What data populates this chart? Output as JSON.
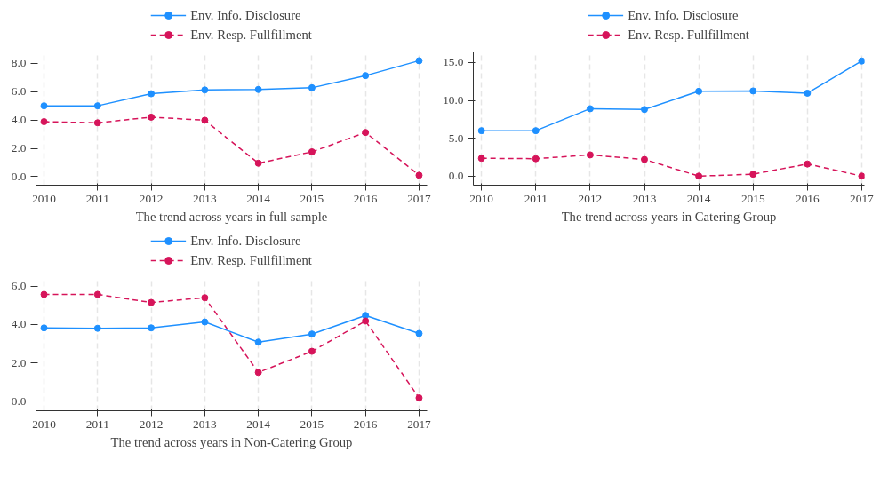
{
  "chart_data": [
    {
      "type": "line",
      "xlabel": "The trend across years in full sample",
      "x": [
        2010,
        2011,
        2012,
        2013,
        2014,
        2015,
        2016,
        2017
      ],
      "xlim": [
        2009.85,
        2017.15
      ],
      "xticks": [
        2010,
        2011,
        2012,
        2013,
        2014,
        2015,
        2016,
        2017
      ],
      "ylim": [
        -0.6,
        8.8
      ],
      "yticks": [
        {
          "value": 0,
          "label": "0.0"
        },
        {
          "value": 2,
          "label": "2.0"
        },
        {
          "value": 4,
          "label": "4.0"
        },
        {
          "value": 6,
          "label": "6.0"
        },
        {
          "value": 8,
          "label": "8.0"
        }
      ],
      "grid": "x",
      "legend": "top",
      "marker": "circle",
      "series": [
        {
          "name": "Env. Info. Disclosure",
          "color": "#1e90ff",
          "line_style": "solid",
          "values": [
            5.0,
            5.0,
            5.85,
            6.12,
            6.15,
            6.27,
            7.13,
            8.18
          ]
        },
        {
          "name": "Env. Resp. Fullfillment",
          "color": "#d6145a",
          "line_style": "dashed",
          "values": [
            3.88,
            3.8,
            4.2,
            3.98,
            0.95,
            1.75,
            3.12,
            0.1
          ]
        }
      ]
    },
    {
      "type": "line",
      "xlabel": "The trend across years in Catering Group",
      "x": [
        2010,
        2011,
        2012,
        2013,
        2014,
        2015,
        2016,
        2017
      ],
      "xlim": [
        2009.85,
        2017.05
      ],
      "xticks": [
        2010,
        2011,
        2012,
        2013,
        2014,
        2015,
        2016,
        2017
      ],
      "ylim": [
        -1.2,
        16.4
      ],
      "yticks": [
        {
          "value": 0,
          "label": "0.0"
        },
        {
          "value": 5,
          "label": "5.0"
        },
        {
          "value": 10,
          "label": "10.0"
        },
        {
          "value": 15,
          "label": "15.0"
        }
      ],
      "grid": "x",
      "legend": "top",
      "marker": "circle",
      "series": [
        {
          "name": "Env. Info. Disclosure",
          "color": "#1e90ff",
          "line_style": "solid",
          "values": [
            6.0,
            6.0,
            8.9,
            8.8,
            11.2,
            11.25,
            10.95,
            15.2
          ]
        },
        {
          "name": "Env. Resp. Fullfillment",
          "color": "#d6145a",
          "line_style": "dashed",
          "values": [
            2.35,
            2.3,
            2.8,
            2.2,
            0.0,
            0.25,
            1.6,
            0.0
          ]
        }
      ]
    },
    {
      "type": "line",
      "xlabel": "The trend across years in Non-Catering Group",
      "x": [
        2010,
        2011,
        2012,
        2013,
        2014,
        2015,
        2016,
        2017
      ],
      "xlim": [
        2009.85,
        2017.15
      ],
      "xticks": [
        2010,
        2011,
        2012,
        2013,
        2014,
        2015,
        2016,
        2017
      ],
      "ylim": [
        -0.5,
        6.45
      ],
      "yticks": [
        {
          "value": 0,
          "label": "0.0"
        },
        {
          "value": 2,
          "label": "2.0"
        },
        {
          "value": 4,
          "label": "4.0"
        },
        {
          "value": 6,
          "label": "6.0"
        }
      ],
      "grid": "x",
      "legend": "top",
      "marker": "circle",
      "series": [
        {
          "name": "Env. Info. Disclosure",
          "color": "#1e90ff",
          "line_style": "solid",
          "values": [
            3.82,
            3.8,
            3.82,
            4.13,
            3.08,
            3.5,
            4.47,
            3.53
          ]
        },
        {
          "name": "Env. Resp. Fullfillment",
          "color": "#d6145a",
          "line_style": "dashed",
          "values": [
            5.57,
            5.57,
            5.15,
            5.4,
            1.5,
            2.6,
            4.18,
            0.17
          ]
        }
      ]
    }
  ]
}
